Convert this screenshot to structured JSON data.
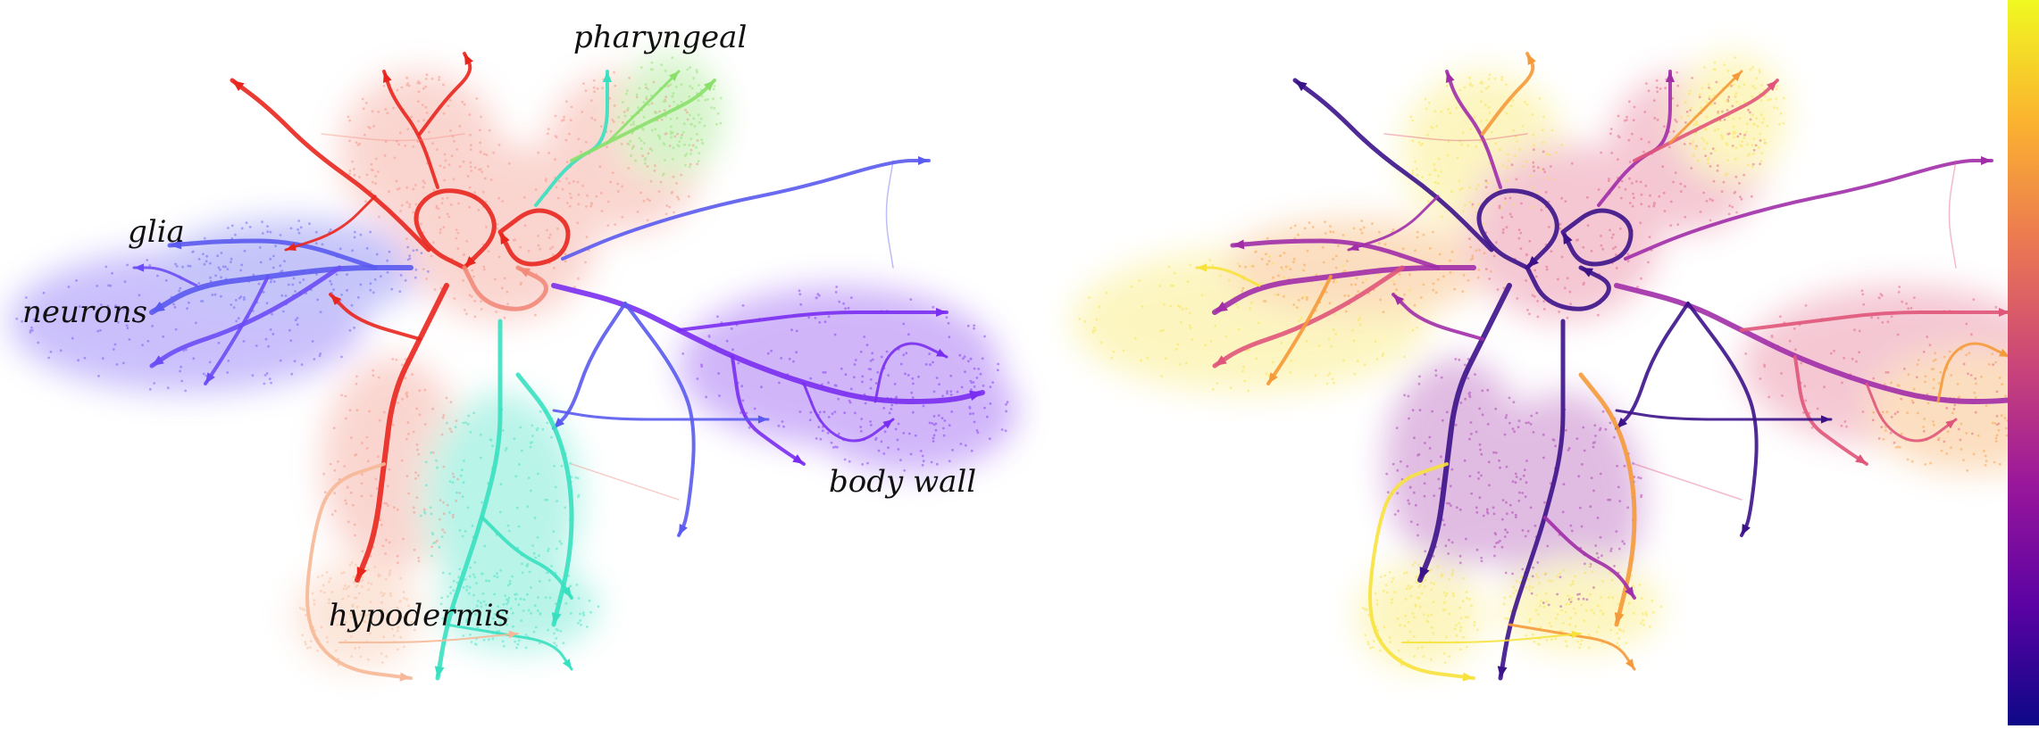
{
  "labels": {
    "pharyngeal": "pharyngeal",
    "glia": "glia",
    "neurons": "neurons",
    "body_wall": "body wall",
    "hypodermis": "hypodermis"
  },
  "colors": {
    "neurons": "#6b4cf5",
    "glia": "#5a5af0",
    "body_wall": "#7a2df0",
    "hypodermis": "#38e0c0",
    "pharyngeal": "#8ae06a",
    "red": "#e8261e",
    "salmon": "#f28a7a",
    "peach": "#f6b896",
    "mag_dark": "#3c1289",
    "mag_mid": "#a12ea8",
    "mag_pink": "#e0557a",
    "mag_orange": "#f59a3a",
    "mag_yellow": "#f7e23c"
  },
  "colorbar": {
    "stops": [
      "#0d0887",
      "#5b02a3",
      "#9a179b",
      "#cb4678",
      "#eb7852",
      "#fbb32f",
      "#f0f921"
    ]
  }
}
